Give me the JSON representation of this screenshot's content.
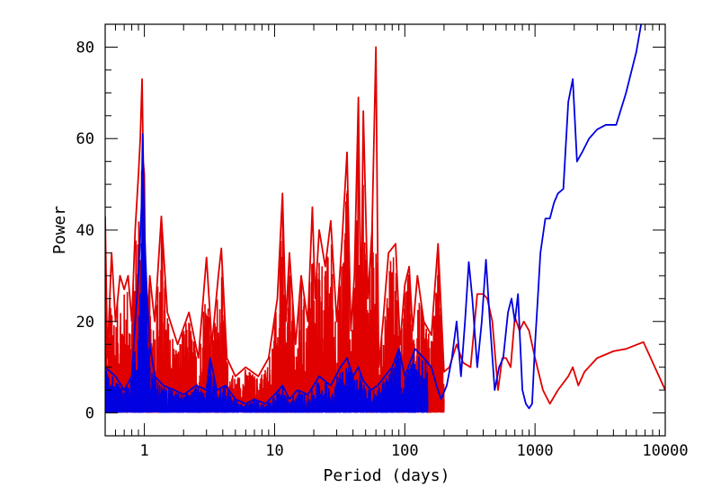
{
  "chart_data": {
    "type": "line",
    "xlabel": "Period (days)",
    "ylabel": "Power",
    "x_scale": "log",
    "xlim": [
      0.5,
      10000
    ],
    "ylim": [
      -5,
      85
    ],
    "x_tick_labels": [
      "1",
      "10",
      "100",
      "1000",
      "10000"
    ],
    "y_tick_labels": [
      "0",
      "20",
      "40",
      "60",
      "80"
    ],
    "grid": false,
    "colors": {
      "red_series": "#e00000",
      "red_series_long": "#b01010",
      "blue_series": "#0000e0"
    },
    "series": [
      {
        "color": "#e00000",
        "x": [
          0.5,
          0.52,
          0.56,
          0.6,
          0.65,
          0.7,
          0.75,
          0.8,
          0.85,
          0.9,
          0.93,
          0.96,
          0.98,
          1.0,
          1.02,
          1.05,
          1.1,
          1.2,
          1.35,
          1.5,
          1.8,
          2.2,
          2.6,
          3.0,
          3.3,
          3.7,
          3.9,
          4.3,
          5.0,
          6.0,
          7.5,
          9.0,
          10.5,
          11.5,
          12.2,
          13.0,
          14.5,
          16.0,
          18.0,
          19.5,
          20.5,
          22.0,
          24.5,
          27.0,
          30.0,
          33.0,
          36.0,
          38.5,
          41.0,
          44.0,
          46.0,
          48.0,
          52.0,
          56.0,
          60.0,
          63.0,
          68.0,
          75.0,
          85.0,
          92.0,
          100.0,
          108.0,
          115.0,
          125.0,
          140.0,
          160.0,
          180.0,
          200.0,
          220.0,
          250.0,
          280.0,
          320.0,
          360.0,
          400.0,
          430.0,
          470.0,
          520.0,
          560.0,
          600.0,
          650.0,
          700.0,
          760.0,
          820.0,
          900.0,
          1000.0,
          1150.0,
          1300.0,
          1500.0,
          1800.0,
          1950.0,
          2150.0,
          2400.0,
          3000.0,
          4000.0,
          5000.0,
          6800.0,
          10000.0
        ],
        "y": [
          43,
          12,
          35,
          20,
          30,
          27,
          30,
          20,
          40,
          52,
          60,
          73,
          55,
          52,
          25,
          18,
          30,
          20,
          43,
          22,
          15,
          22,
          12,
          34,
          15,
          30,
          36,
          12,
          8,
          10,
          8,
          12,
          25,
          48,
          20,
          35,
          15,
          30,
          20,
          45,
          25,
          40,
          32,
          42,
          20,
          38,
          57,
          18,
          30,
          69,
          20,
          66,
          25,
          40,
          80,
          10,
          20,
          35,
          37,
          15,
          28,
          32,
          18,
          30,
          20,
          17,
          37,
          9,
          10,
          15,
          11,
          10,
          26,
          26,
          25,
          20,
          5,
          12,
          12,
          10,
          21,
          18,
          20,
          18,
          12,
          5,
          2,
          5,
          8,
          10,
          6,
          9,
          12,
          13.5,
          14,
          15.5,
          5
        ]
      },
      {
        "color": "#0000e0",
        "x": [
          0.5,
          0.6,
          0.7,
          0.8,
          0.85,
          0.9,
          0.95,
          0.97,
          1.0,
          1.05,
          1.1,
          1.2,
          1.4,
          1.7,
          2.0,
          2.5,
          3.0,
          3.2,
          3.6,
          4.2,
          5.0,
          6.0,
          7.0,
          8.5,
          10.0,
          11.5,
          13.0,
          15.0,
          18.0,
          22.0,
          27.0,
          32.0,
          36.0,
          40.0,
          44.0,
          48.0,
          55.0,
          62.0,
          70.0,
          80.0,
          90.0,
          100.0,
          120.0,
          140.0,
          160.0,
          175.0,
          190.0,
          210.0,
          230.0,
          250.0,
          270.0,
          290.0,
          310.0,
          330.0,
          360.0,
          390.0,
          420.0,
          450.0,
          490.0,
          530.0,
          570.0,
          620.0,
          660.0,
          700.0,
          740.0,
          770.0,
          800.0,
          850.0,
          900.0,
          950.0,
          1000.0,
          1050.0,
          1100.0,
          1200.0,
          1300.0,
          1400.0,
          1500.0,
          1650.0,
          1800.0,
          1950.0,
          2100.0,
          2300.0,
          2600.0,
          3000.0,
          3500.0,
          4200.0,
          5000.0,
          6000.0,
          7000.0,
          7500.0
        ],
        "y": [
          10,
          8,
          5,
          8,
          20,
          30,
          45,
          61,
          40,
          25,
          15,
          8,
          6,
          5,
          4,
          6,
          5,
          12,
          5,
          6,
          3,
          2,
          3,
          2,
          4,
          6,
          3,
          5,
          4,
          8,
          6,
          10,
          12,
          8,
          10,
          7,
          5,
          6,
          8,
          10,
          14,
          8,
          14,
          12,
          10,
          6,
          3,
          6,
          12,
          20,
          8,
          20,
          33,
          25,
          10,
          20,
          33.5,
          20,
          5,
          10,
          12,
          22,
          25,
          20,
          26,
          15,
          5,
          2,
          1,
          2,
          15,
          25,
          35,
          42.5,
          42.5,
          46,
          48,
          49,
          68,
          73,
          55,
          57,
          60,
          62,
          63,
          63,
          70,
          79,
          90,
          95
        ]
      }
    ]
  }
}
